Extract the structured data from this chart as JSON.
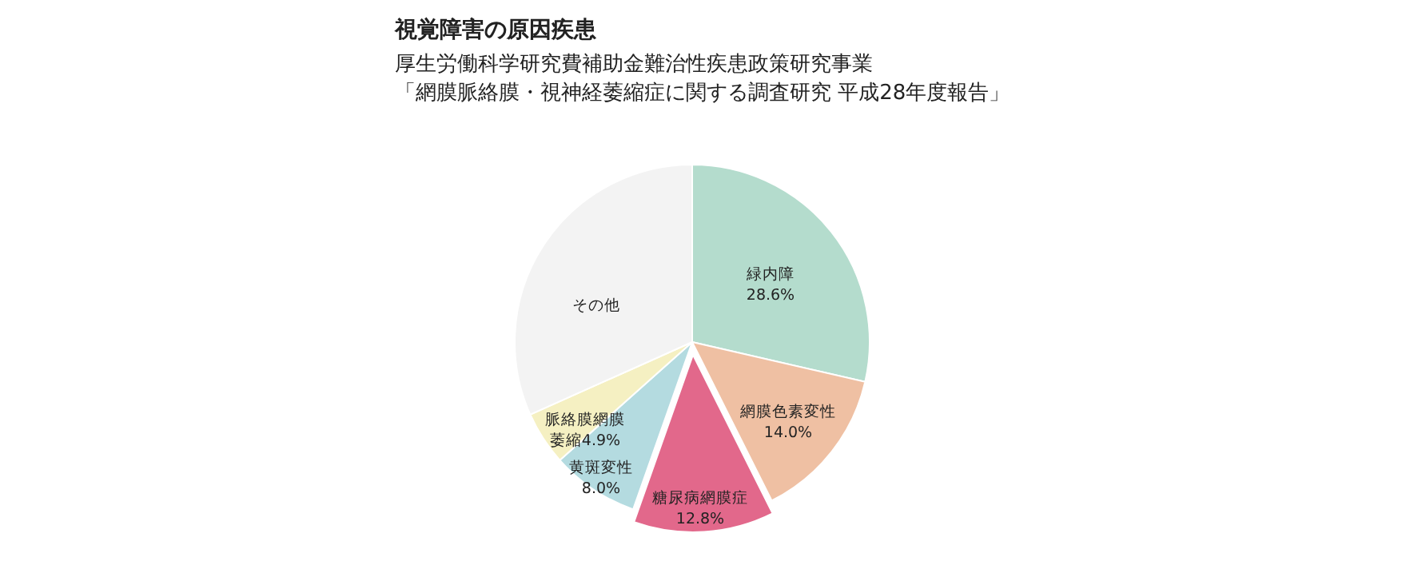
{
  "chart_data": {
    "type": "pie",
    "title": "視覚障害の原因疾患",
    "subtitle": "厚生労働科学研究費補助金難治性疾患政策研究事業",
    "annotations": [
      "「網膜脈絡膜・視神経萎縮症に関する調査研究 平成28年度報告」"
    ],
    "categories": [
      "緑内障",
      "網膜色素変性",
      "糖尿病網膜症",
      "黄斑変性",
      "脈絡膜網膜萎縮",
      "その他"
    ],
    "values": [
      28.6,
      14.0,
      12.8,
      8.0,
      4.9,
      31.7
    ],
    "value_labels": [
      "28.6%",
      "14.0%",
      "12.8%",
      "8.0%",
      "4.9%",
      null
    ],
    "colors": [
      "#b4dccd",
      "#efc0a3",
      "#e2688b",
      "#b4dbe0",
      "#f5f0c2",
      "#f3f3f3"
    ]
  }
}
